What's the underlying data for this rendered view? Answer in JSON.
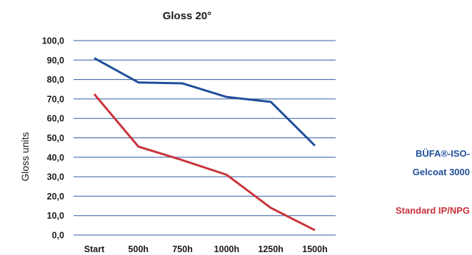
{
  "chart_data": {
    "type": "line",
    "title": "Gloss 20°",
    "xlabel": "",
    "ylabel": "Gloss units",
    "categories": [
      "Start",
      "500h",
      "750h",
      "1000h",
      "1250h",
      "1500h"
    ],
    "y_tick_labels": [
      "0,0",
      "10,0",
      "20,0",
      "30,0",
      "40,0",
      "50,0",
      "60,0",
      "70,0",
      "80,0",
      "90,0",
      "100,0"
    ],
    "ylim": [
      0,
      100
    ],
    "grid": true,
    "legend_placement": "right",
    "series": [
      {
        "name_lines": [
          "BÜFA®-ISO-",
          "Gelcoat 3000"
        ],
        "color": "#1f4e99",
        "values": [
          91,
          78.5,
          78,
          71,
          68.5,
          46
        ]
      },
      {
        "name_lines": [
          "Standard IP/NPG"
        ],
        "color": "#c8323a",
        "values": [
          72.5,
          45.5,
          38.5,
          31,
          14,
          2.5
        ]
      }
    ],
    "grid_color": "#2f5aa8"
  }
}
